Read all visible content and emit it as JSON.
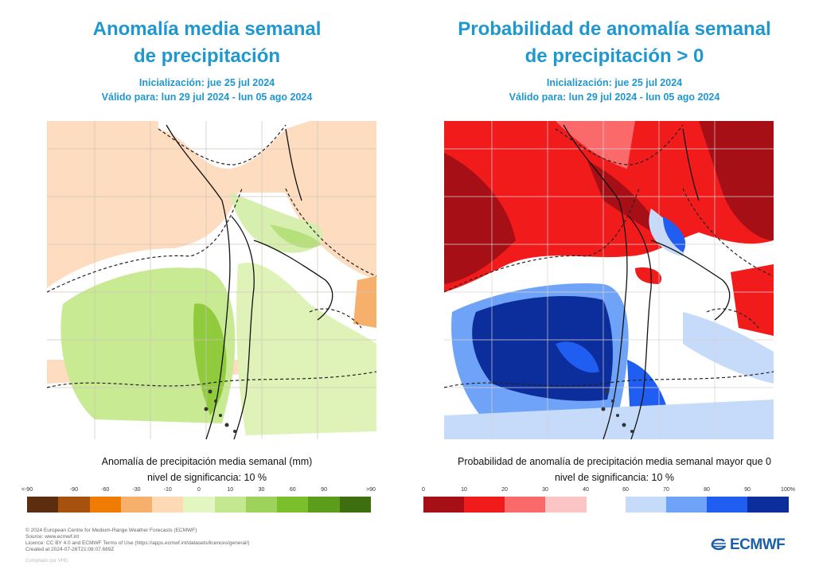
{
  "left": {
    "title_line1": "Anomalía media semanal",
    "title_line2": "de precipitación",
    "init": "Inicialización: jue 25 jul 2024",
    "valid": "Válido para: lun 29 jul 2024 - lun 05 ago 2024",
    "caption1": "Anomalía de precipitación media semanal (mm)",
    "caption2": "nivel de significancia: 10 %",
    "legend_ticks": [
      "<-90",
      "-90",
      "-60",
      "-30",
      "-10",
      "0",
      "10",
      "30",
      "60",
      "90",
      ">90"
    ],
    "legend_colors": [
      "#5c2d0e",
      "#a6520e",
      "#f07c06",
      "#f7b06b",
      "#fdd9b5",
      "#e3f5c0",
      "#c3e891",
      "#9ed25a",
      "#7cbf2d",
      "#5c9e1b",
      "#3f6e10"
    ]
  },
  "right": {
    "title_line1": "Probabilidad de anomalía semanal",
    "title_line2": "de precipitación > 0",
    "init": "Inicialización: jue 25 jul 2024",
    "valid": "Válido para: lun 29 jul 2024 - lun 05 ago 2024",
    "caption1": "Probabilidad de anomalía de precipitación media semanal mayor que 0",
    "caption2": "nivel de significancia: 10 %",
    "legend_ticks_low": [
      "0",
      "10",
      "20",
      "30",
      "40"
    ],
    "legend_ticks_high": [
      "60",
      "70",
      "80",
      "90",
      "100%"
    ],
    "legend_colors_low": [
      "#a50f15",
      "#f21b1b",
      "#fb6a6a",
      "#fcc5c5"
    ],
    "legend_colors_high": [
      "#c6dbfa",
      "#6fa3f7",
      "#1f5ef0",
      "#0b2e9c"
    ]
  },
  "footer": {
    "line1": "© 2024 European Centre for Medium-Range Weather Forecasts (ECMWF)",
    "line2": "Source: www.ecmwf.int",
    "line3": "Licence: CC BY 4.0 and ECMWF Terms of Use (https://apps.ecmwf.int/datasets/licences/general/)",
    "line4": "Created at 2024-07-26T21:08:07.689Z",
    "compiled": "Compilado por VHG"
  },
  "brand": {
    "name": "ECMWF",
    "color": "#1a5fa8"
  }
}
